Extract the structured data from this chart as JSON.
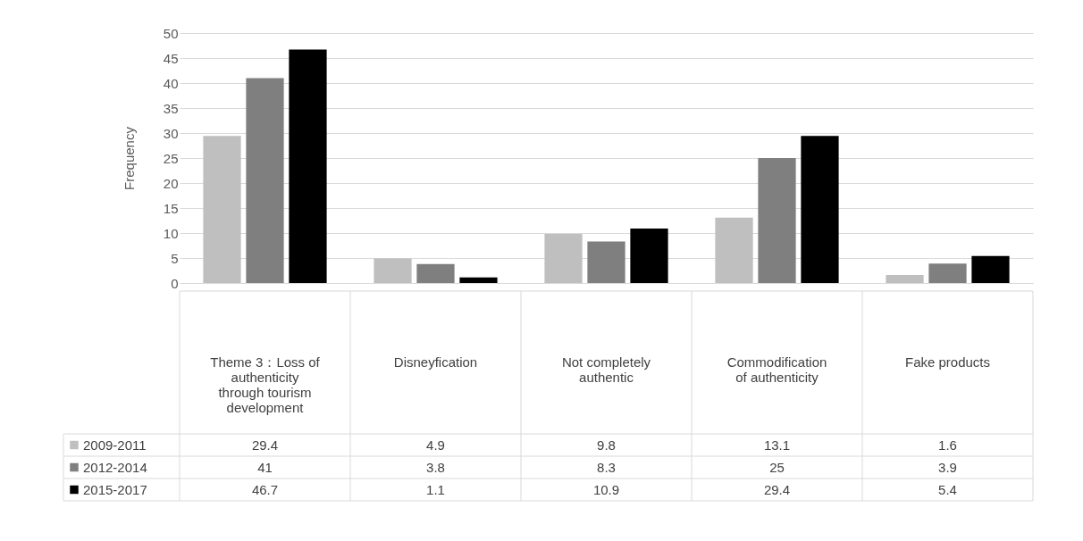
{
  "chart_data": {
    "type": "bar",
    "ylabel": "Frequency",
    "categories": [
      "Theme 3：Loss of authenticity through tourism development",
      "Disneyfication",
      "Not completely authentic",
      "Commodification of authenticity",
      "Fake products"
    ],
    "series": [
      {
        "name": "2009-2011",
        "color": "#bfbfbf",
        "values": [
          29.4,
          4.9,
          9.8,
          13.1,
          1.6
        ]
      },
      {
        "name": "2012-2014",
        "color": "#7f7f7f",
        "values": [
          41,
          3.8,
          8.3,
          25,
          3.9
        ]
      },
      {
        "name": "2015-2017",
        "color": "#000000",
        "values": [
          46.7,
          1.1,
          10.9,
          29.4,
          5.4
        ]
      }
    ],
    "ylim": [
      0,
      50
    ],
    "yticks": [
      0,
      5,
      10,
      15,
      20,
      25,
      30,
      35,
      40,
      45,
      50
    ],
    "grid": "y",
    "legend": "bottom",
    "data_labels": true
  }
}
